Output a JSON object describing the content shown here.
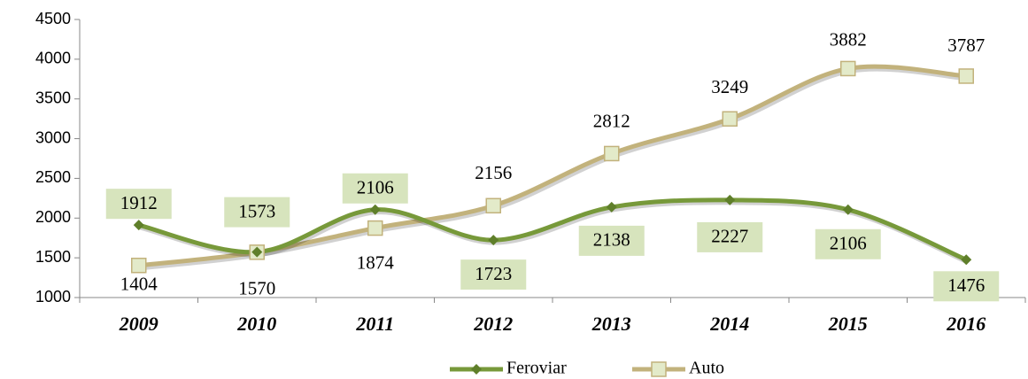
{
  "chart_data": {
    "type": "line",
    "categories": [
      "2009",
      "2010",
      "2011",
      "2012",
      "2013",
      "2014",
      "2015",
      "2016"
    ],
    "series": [
      {
        "name": "Feroviar",
        "color": "#77993a",
        "values": [
          1912,
          1573,
          2106,
          1723,
          2138,
          2227,
          2106,
          1476
        ]
      },
      {
        "name": "Auto",
        "color": "#c2b27c",
        "values": [
          1404,
          1570,
          1874,
          2156,
          2812,
          3249,
          3882,
          3787
        ]
      }
    ],
    "ylim": [
      1000,
      4500
    ],
    "yticks": [
      1000,
      1500,
      2000,
      2500,
      3000,
      3500,
      4000,
      4500
    ],
    "grid": false,
    "legend": "bottom"
  }
}
